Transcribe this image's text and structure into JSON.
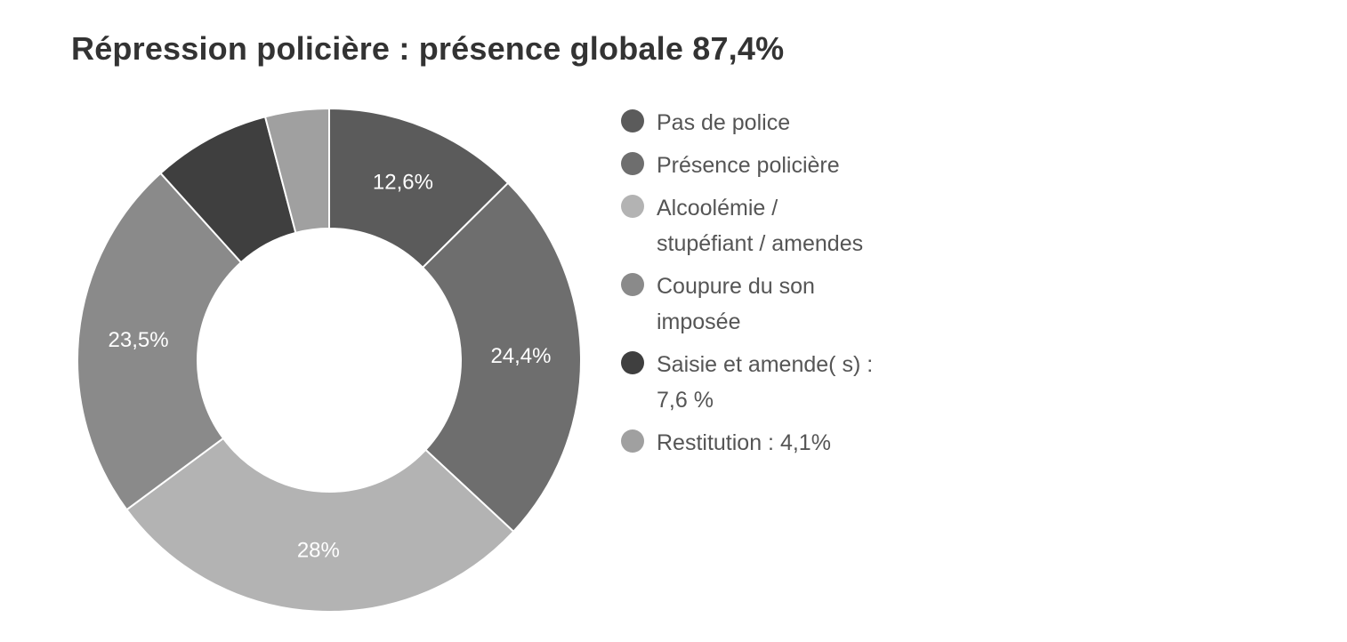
{
  "title": "Répression policière : présence globale 87,4%",
  "chart_data": {
    "type": "pie",
    "donut": true,
    "title": "Répression policière : présence globale 87,4%",
    "slices": [
      {
        "name": "Pas de police",
        "value": 12.6,
        "label": "12,6%",
        "color": "#5b5b5b"
      },
      {
        "name": "Présence policière",
        "value": 24.4,
        "label": "24,4%",
        "color": "#6e6e6e"
      },
      {
        "name": "Alcoolémie / stupéfiant / amendes",
        "value": 28,
        "label": "28%",
        "color": "#b3b3b3"
      },
      {
        "name": "Coupure du son imposée",
        "value": 23.5,
        "label": "23,5%",
        "color": "#8a8a8a"
      },
      {
        "name": "Saisie et amende(s) : 7,6 %",
        "value": 7.6,
        "label": "",
        "color": "#3f3f3f"
      },
      {
        "name": "Restitution : 4,1%",
        "value": 4.1,
        "label": "",
        "color": "#a0a0a0"
      }
    ],
    "legend_position": "right"
  },
  "legend": [
    {
      "text": "Pas de police",
      "color": "#5b5b5b"
    },
    {
      "text": "Présence policière",
      "color": "#6e6e6e"
    },
    {
      "text": "Alcoolémie / stupéfiant / amendes",
      "color": "#b3b3b3"
    },
    {
      "text": "Coupure du son imposée",
      "color": "#8a8a8a"
    },
    {
      "text": "Saisie et amende( s) : 7,6 %",
      "color": "#3f3f3f"
    },
    {
      "text": "Restitution : 4,1%",
      "color": "#a0a0a0"
    }
  ]
}
